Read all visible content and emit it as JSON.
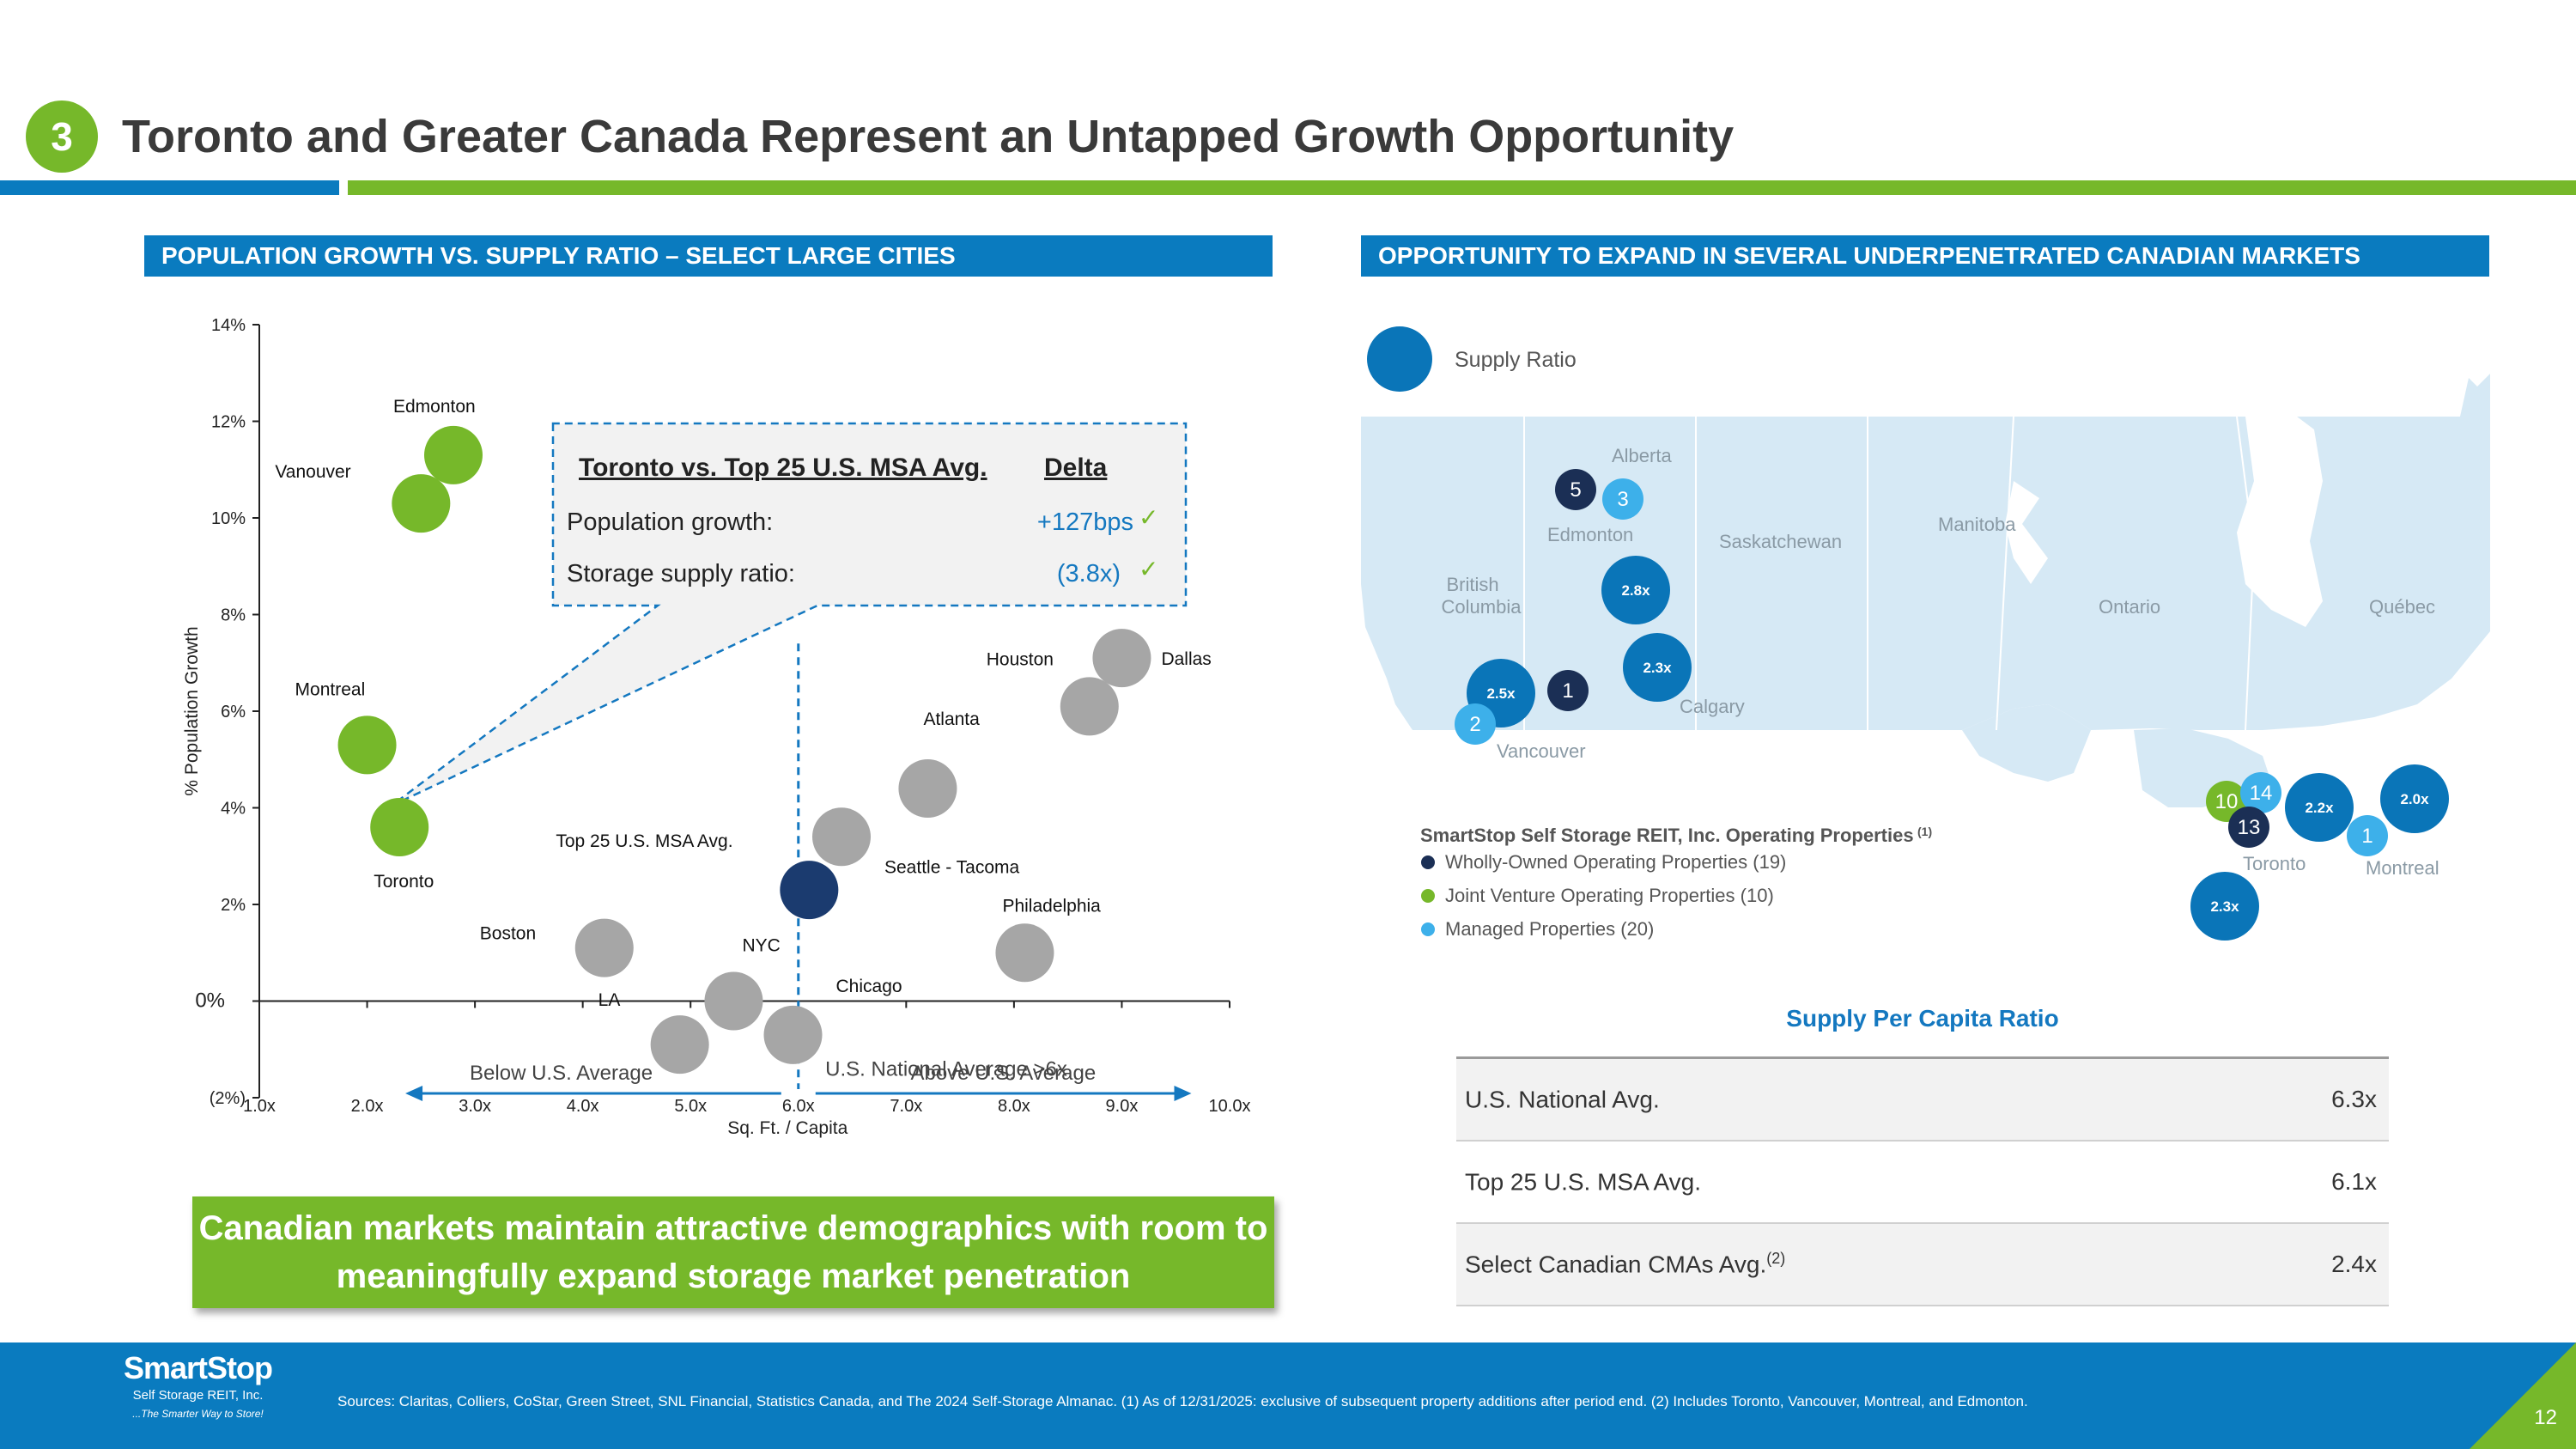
{
  "header": {
    "step_number": "3",
    "title": "Toronto and Greater Canada Represent an Untapped Growth Opportunity"
  },
  "left_section": {
    "title": "POPULATION GROWTH VS. SUPPLY RATIO – SELECT LARGE CITIES"
  },
  "right_section": {
    "title": "OPPORTUNITY TO EXPAND IN SEVERAL UNDERPENETRATED CANADIAN MARKETS"
  },
  "chart_data": {
    "type": "scatter",
    "xlabel": "Sq. Ft. / Capita",
    "ylabel": "% Population Growth",
    "xlim": [
      1,
      10
    ],
    "ylim": [
      -2,
      14
    ],
    "x_ticks": [
      "1.0x",
      "2.0x",
      "3.0x",
      "4.0x",
      "5.0x",
      "6.0x",
      "7.0x",
      "8.0x",
      "9.0x",
      "10.0x"
    ],
    "y_ticks": [
      {
        "value": 14,
        "label": "14%"
      },
      {
        "value": 12,
        "label": "12%"
      },
      {
        "value": 10,
        "label": "10%"
      },
      {
        "value": 8,
        "label": "8%"
      },
      {
        "value": 6,
        "label": "6%"
      },
      {
        "value": 4,
        "label": "4%"
      },
      {
        "value": 2,
        "label": "2%"
      },
      {
        "value": 0,
        "label": "0%"
      },
      {
        "value": -2,
        "label": "(2%)"
      }
    ],
    "colors": {
      "canada": "#76b82a",
      "us": "#a6a6a6",
      "benchmark": "#1b3b6f"
    },
    "points": [
      {
        "name": "Edmonton",
        "x": 2.8,
        "y": 11.3,
        "group": "canada"
      },
      {
        "name": "Vanouver",
        "x": 2.5,
        "y": 10.3,
        "group": "canada"
      },
      {
        "name": "Montreal",
        "x": 2.0,
        "y": 5.3,
        "group": "canada"
      },
      {
        "name": "Toronto",
        "x": 2.3,
        "y": 3.6,
        "group": "canada"
      },
      {
        "name": "Dallas",
        "x": 9.0,
        "y": 7.1,
        "group": "us"
      },
      {
        "name": "Houston",
        "x": 8.7,
        "y": 6.1,
        "group": "us"
      },
      {
        "name": "Atlanta",
        "x": 7.2,
        "y": 4.4,
        "group": "us"
      },
      {
        "name": "Seattle - Tacoma",
        "x": 6.4,
        "y": 3.4,
        "group": "us"
      },
      {
        "name": "Top 25 U.S. MSA Avg.",
        "x": 6.1,
        "y": 2.3,
        "group": "benchmark"
      },
      {
        "name": "Philadelphia",
        "x": 8.1,
        "y": 1.0,
        "group": "us"
      },
      {
        "name": "Boston",
        "x": 4.2,
        "y": 1.1,
        "group": "us"
      },
      {
        "name": "NYC",
        "x": 5.4,
        "y": 0.0,
        "group": "us"
      },
      {
        "name": "LA",
        "x": 4.9,
        "y": -0.9,
        "group": "us"
      },
      {
        "name": "Chicago",
        "x": 5.95,
        "y": -0.7,
        "group": "us"
      }
    ],
    "reference_line": {
      "x": 6.0,
      "label": "U.S. National Average >6x"
    },
    "below_label": "Below U.S. Average",
    "above_label": "Above U.S. Average"
  },
  "callout": {
    "title": "Toronto vs. Top 25 U.S. MSA Avg.",
    "delta_header": "Delta",
    "rows": [
      {
        "label": "Population growth:",
        "value": "+127bps"
      },
      {
        "label": "Storage supply ratio:",
        "value": "(3.8x)"
      }
    ],
    "check": "✓"
  },
  "takeaway": {
    "line1": "Canadian markets maintain attractive demographics with room to",
    "line2": "meaningfully expand storage market penetration"
  },
  "map": {
    "supply_legend": "Supply Ratio",
    "provinces": [
      "Alberta",
      "Saskatchewan",
      "Manitoba",
      "British",
      "Columbia",
      "Ontario",
      "Québec"
    ],
    "cities": [
      "Edmonton",
      "Calgary",
      "Vancouver",
      "Toronto",
      "Montreal"
    ],
    "supply_ratios": [
      "2.8x",
      "2.3x",
      "2.5x",
      "2.2x",
      "2.0x",
      "2.3x"
    ],
    "property_counts": [
      "5",
      "3",
      "1",
      "2",
      "10",
      "14",
      "13",
      "1"
    ],
    "legend_title": "SmartStop Self Storage REIT, Inc. Operating Properties",
    "legend_title_sup": "(1)",
    "legend_items": [
      {
        "label": "Wholly-Owned Operating Properties (19)",
        "color": "#1b2f55"
      },
      {
        "label": "Joint Venture Operating Properties (10)",
        "color": "#76b82a"
      },
      {
        "label": "Managed Properties (20)",
        "color": "#3db0ea"
      }
    ]
  },
  "supply_table": {
    "title": "Supply Per Capita Ratio",
    "rows": [
      {
        "label": "U.S. National Avg.",
        "sup": "",
        "value": "6.3x"
      },
      {
        "label": "Top 25 U.S. MSA Avg.",
        "sup": "",
        "value": "6.1x"
      },
      {
        "label": "Select Canadian CMAs Avg.",
        "sup": "(2)",
        "value": "2.4x"
      }
    ]
  },
  "footer": {
    "logo_name": "SmartStop",
    "logo_sub": "Self Storage REIT, Inc.",
    "logo_tagline": "...The Smarter Way to Store!",
    "sources": "Sources: Claritas, Colliers, CoStar, Green Street, SNL Financial, Statistics Canada, and The 2024 Self-Storage Almanac. (1) As of 12/31/2025: exclusive of subsequent property additions after period end. (2) Includes Toronto, Vancouver, Montreal, and Edmonton.",
    "page_number": "12"
  }
}
